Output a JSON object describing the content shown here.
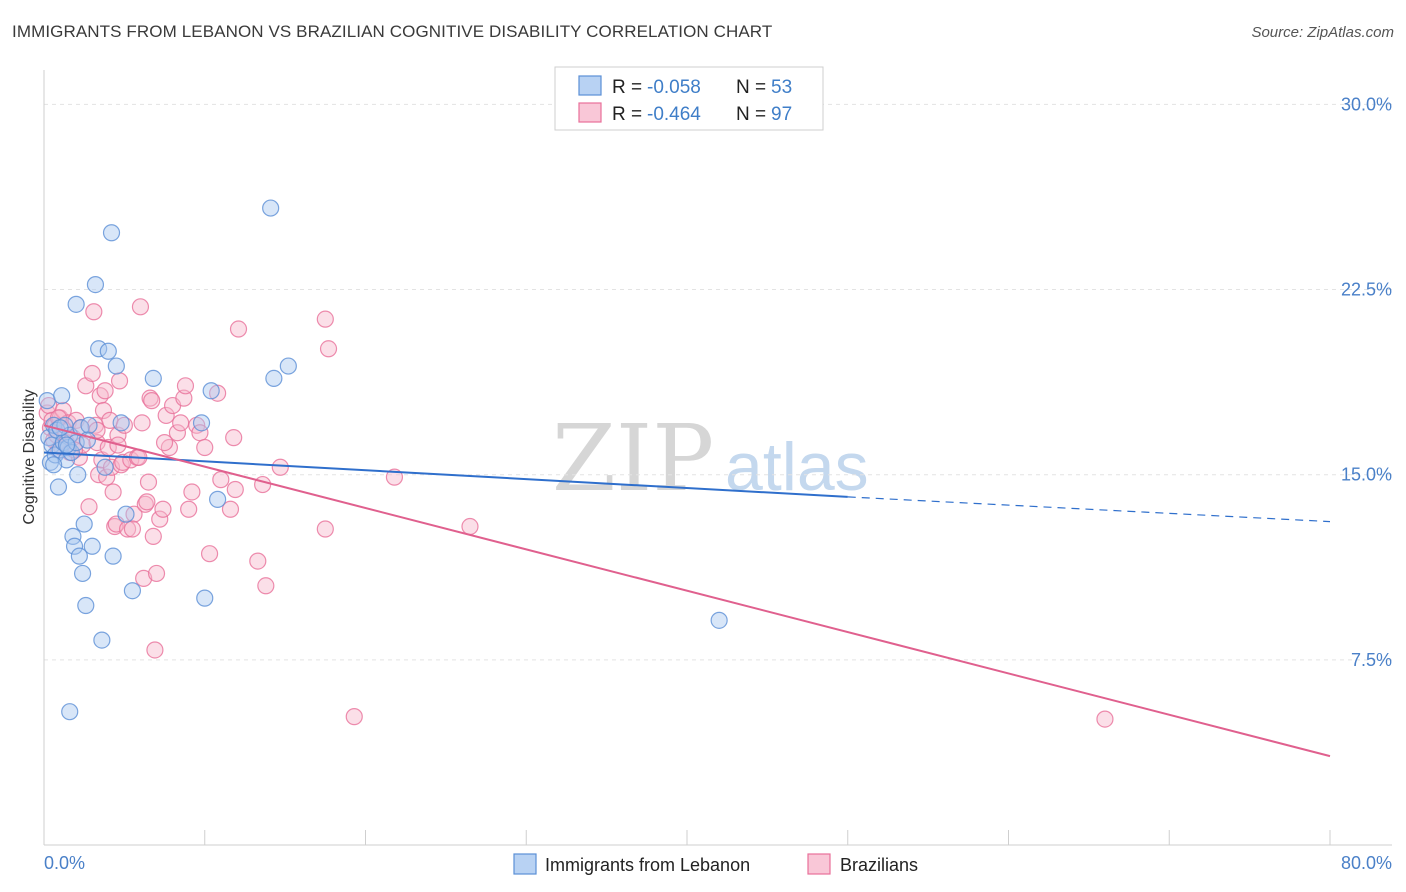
{
  "title": "IMMIGRANTS FROM LEBANON VS BRAZILIAN COGNITIVE DISABILITY CORRELATION CHART",
  "source": "Source: ZipAtlas.com",
  "watermark": {
    "zip": "ZIP",
    "atlas": "atlas"
  },
  "colors": {
    "blue": "#5b8fd6",
    "pink": "#e8709a",
    "blue_fill": "#a9c8f0",
    "pink_fill": "#f6b7cb",
    "label": "#4a80c8"
  },
  "legend": {
    "rows": [
      {
        "r_label": "R = ",
        "r_value": "-0.058",
        "n_label": "N = ",
        "n_value": "53"
      },
      {
        "r_label": "R = ",
        "r_value": "-0.464",
        "n_label": "N = ",
        "n_value": "97"
      }
    ]
  },
  "chart_data": {
    "type": "scatter",
    "title": "IMMIGRANTS FROM LEBANON VS BRAZILIAN COGNITIVE DISABILITY CORRELATION CHART",
    "xlabel": "",
    "ylabel": "Cognitive Disability",
    "xlim": [
      0,
      80
    ],
    "ylim": [
      0,
      32
    ],
    "x_tick_labels": [
      "0.0%",
      "80.0%"
    ],
    "y_ticks": [
      7.5,
      15.0,
      22.5,
      30.0
    ],
    "y_tick_labels": [
      "7.5%",
      "15.0%",
      "22.5%",
      "30.0%"
    ],
    "series": [
      {
        "name": "Immigrants from Lebanon",
        "color": "blue",
        "trend": {
          "x0": 0,
          "y0": 15.9,
          "x1": 50,
          "y1": 14.1,
          "dash_to_x": 80,
          "dash_to_y": 13.1
        },
        "points": [
          [
            0.2,
            18.0
          ],
          [
            0.3,
            16.5
          ],
          [
            0.4,
            15.5
          ],
          [
            0.5,
            16.2
          ],
          [
            0.6,
            17.0
          ],
          [
            0.7,
            15.8
          ],
          [
            0.8,
            16.8
          ],
          [
            0.9,
            14.5
          ],
          [
            1.0,
            16.0
          ],
          [
            1.1,
            18.2
          ],
          [
            1.2,
            16.3
          ],
          [
            1.3,
            17.0
          ],
          [
            1.4,
            15.6
          ],
          [
            1.5,
            16.1
          ],
          [
            1.6,
            16.6
          ],
          [
            1.7,
            15.9
          ],
          [
            1.8,
            12.5
          ],
          [
            1.9,
            12.1
          ],
          [
            2.0,
            16.3
          ],
          [
            2.1,
            15.0
          ],
          [
            2.2,
            11.7
          ],
          [
            2.3,
            16.9
          ],
          [
            2.4,
            11.0
          ],
          [
            2.5,
            13.0
          ],
          [
            2.6,
            9.7
          ],
          [
            2.8,
            17.0
          ],
          [
            3.0,
            12.1
          ],
          [
            3.2,
            22.7
          ],
          [
            3.4,
            20.1
          ],
          [
            3.6,
            8.3
          ],
          [
            3.8,
            15.3
          ],
          [
            4.0,
            20.0
          ],
          [
            4.2,
            24.8
          ],
          [
            4.3,
            11.7
          ],
          [
            4.5,
            19.4
          ],
          [
            4.8,
            17.1
          ],
          [
            5.1,
            13.4
          ],
          [
            5.5,
            10.3
          ],
          [
            6.8,
            18.9
          ],
          [
            9.8,
            17.1
          ],
          [
            10.0,
            10.0
          ],
          [
            10.4,
            18.4
          ],
          [
            10.8,
            14.0
          ],
          [
            14.1,
            25.8
          ],
          [
            14.3,
            18.9
          ],
          [
            15.2,
            19.4
          ],
          [
            42.0,
            9.1
          ],
          [
            1.6,
            5.4
          ],
          [
            2.0,
            21.9
          ],
          [
            0.6,
            15.4
          ],
          [
            1.0,
            16.9
          ],
          [
            1.4,
            16.2
          ],
          [
            2.7,
            16.4
          ]
        ]
      },
      {
        "name": "Brazilians",
        "color": "pink",
        "trend": {
          "x0": 0,
          "y0": 17.0,
          "x1": 80,
          "y1": 3.6
        },
        "points": [
          [
            0.2,
            17.5
          ],
          [
            0.3,
            17.8
          ],
          [
            0.4,
            16.9
          ],
          [
            0.5,
            17.2
          ],
          [
            0.6,
            16.4
          ],
          [
            0.7,
            17.0
          ],
          [
            0.8,
            16.6
          ],
          [
            0.9,
            16.0
          ],
          [
            1.0,
            17.3
          ],
          [
            1.1,
            16.1
          ],
          [
            1.2,
            17.6
          ],
          [
            1.3,
            16.8
          ],
          [
            1.4,
            16.3
          ],
          [
            1.5,
            17.1
          ],
          [
            1.6,
            15.9
          ],
          [
            1.8,
            16.5
          ],
          [
            2.0,
            17.2
          ],
          [
            2.2,
            15.7
          ],
          [
            2.4,
            16.2
          ],
          [
            2.6,
            18.6
          ],
          [
            2.8,
            13.7
          ],
          [
            3.0,
            19.1
          ],
          [
            3.1,
            21.6
          ],
          [
            3.2,
            17.0
          ],
          [
            3.3,
            16.3
          ],
          [
            3.4,
            15.0
          ],
          [
            3.5,
            18.2
          ],
          [
            3.6,
            15.6
          ],
          [
            3.7,
            17.6
          ],
          [
            3.8,
            18.4
          ],
          [
            3.9,
            14.9
          ],
          [
            4.0,
            16.1
          ],
          [
            4.1,
            17.2
          ],
          [
            4.2,
            15.3
          ],
          [
            4.3,
            14.3
          ],
          [
            4.4,
            12.9
          ],
          [
            4.5,
            13.0
          ],
          [
            4.6,
            16.6
          ],
          [
            4.7,
            18.8
          ],
          [
            4.8,
            15.4
          ],
          [
            4.9,
            15.5
          ],
          [
            5.0,
            17.0
          ],
          [
            5.2,
            12.8
          ],
          [
            5.4,
            15.6
          ],
          [
            5.6,
            13.4
          ],
          [
            5.8,
            15.7
          ],
          [
            6.0,
            21.8
          ],
          [
            6.1,
            17.1
          ],
          [
            6.2,
            10.8
          ],
          [
            6.3,
            13.8
          ],
          [
            6.4,
            13.9
          ],
          [
            6.5,
            14.7
          ],
          [
            6.6,
            18.1
          ],
          [
            6.7,
            18.0
          ],
          [
            6.8,
            12.5
          ],
          [
            7.0,
            11.0
          ],
          [
            7.2,
            13.2
          ],
          [
            7.4,
            13.6
          ],
          [
            7.6,
            17.4
          ],
          [
            7.8,
            16.1
          ],
          [
            8.0,
            17.8
          ],
          [
            8.3,
            16.7
          ],
          [
            8.5,
            17.1
          ],
          [
            8.7,
            18.1
          ],
          [
            8.8,
            18.6
          ],
          [
            9.0,
            13.6
          ],
          [
            9.2,
            14.3
          ],
          [
            9.5,
            17.0
          ],
          [
            9.7,
            16.7
          ],
          [
            10.0,
            16.1
          ],
          [
            10.3,
            11.8
          ],
          [
            10.8,
            18.3
          ],
          [
            11.0,
            14.8
          ],
          [
            11.6,
            13.6
          ],
          [
            11.8,
            16.5
          ],
          [
            11.9,
            14.4
          ],
          [
            12.1,
            20.9
          ],
          [
            13.3,
            11.5
          ],
          [
            13.6,
            14.6
          ],
          [
            13.8,
            10.5
          ],
          [
            14.7,
            15.3
          ],
          [
            17.5,
            21.3
          ],
          [
            17.7,
            20.1
          ],
          [
            17.5,
            12.8
          ],
          [
            19.3,
            5.2
          ],
          [
            21.8,
            14.9
          ],
          [
            26.5,
            12.9
          ],
          [
            66.0,
            5.1
          ],
          [
            6.9,
            7.9
          ],
          [
            5.5,
            12.8
          ],
          [
            3.3,
            16.8
          ],
          [
            1.9,
            16.0
          ],
          [
            2.3,
            16.9
          ],
          [
            5.9,
            15.7
          ],
          [
            7.5,
            16.3
          ],
          [
            4.6,
            16.2
          ],
          [
            0.9,
            17.3
          ]
        ]
      }
    ]
  }
}
